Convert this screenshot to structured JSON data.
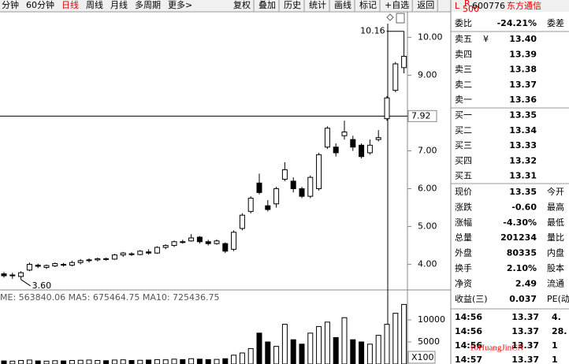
{
  "toolbar": {
    "tabs": [
      "分钟",
      "60分钟",
      "日线",
      "周线",
      "月线",
      "多周期",
      "更多>"
    ],
    "active": 2,
    "buttons": [
      "复权",
      "叠加",
      "历史",
      "统计",
      "画线",
      "标记",
      "+自选",
      "返回"
    ]
  },
  "chart": {
    "type": "candlestick",
    "yticks": [
      {
        "value": 10,
        "label": "10.00"
      },
      {
        "value": 9,
        "label": "9.00"
      },
      {
        "value": 7,
        "label": "7.00"
      },
      {
        "value": 6,
        "label": "6.00"
      },
      {
        "value": 5,
        "label": "5.00"
      },
      {
        "value": 4,
        "label": "4.00"
      }
    ],
    "ylim": [
      3.45,
      10.55
    ],
    "cursor_price": 7.92,
    "high_label": 10.16,
    "low_label": {
      "value": 3.6,
      "label": "3.60"
    },
    "open": [
      3.75,
      3.7,
      3.68,
      3.85,
      3.98,
      3.92,
      3.96,
      4.0,
      3.98,
      4.05,
      4.1,
      4.12,
      4.15,
      4.14,
      4.25,
      4.28,
      4.26,
      4.33,
      4.3,
      4.45,
      4.5,
      4.6,
      4.62,
      4.72,
      4.6,
      4.55,
      4.55,
      4.4,
      4.95,
      5.4,
      6.15,
      5.55,
      5.6,
      6.25,
      6.2,
      6.0,
      5.8,
      6.0,
      7.1,
      7.1,
      7.4,
      7.3,
      7.15,
      6.95,
      7.3,
      7.85,
      8.6,
      9.2
    ],
    "close": [
      3.7,
      3.72,
      3.78,
      4.0,
      3.95,
      3.97,
      4.02,
      3.98,
      4.05,
      4.1,
      4.12,
      4.15,
      4.13,
      4.25,
      4.3,
      4.26,
      4.35,
      4.3,
      4.45,
      4.5,
      4.6,
      4.58,
      4.7,
      4.6,
      4.55,
      4.62,
      4.35,
      4.85,
      5.3,
      5.75,
      5.9,
      5.45,
      6.0,
      6.5,
      6.0,
      5.8,
      6.3,
      6.9,
      7.6,
      6.95,
      7.5,
      7.1,
      6.85,
      7.15,
      7.35,
      8.4,
      9.3,
      9.5
    ],
    "high": [
      3.8,
      3.78,
      3.82,
      4.05,
      4.02,
      4.0,
      4.05,
      4.04,
      4.1,
      4.14,
      4.16,
      4.18,
      4.18,
      4.28,
      4.33,
      4.32,
      4.38,
      4.4,
      4.48,
      4.53,
      4.63,
      4.65,
      4.8,
      4.75,
      4.65,
      4.66,
      4.58,
      4.9,
      5.35,
      5.8,
      6.4,
      5.7,
      6.05,
      6.7,
      6.3,
      6.05,
      6.35,
      6.95,
      7.65,
      7.2,
      7.8,
      7.4,
      7.2,
      7.3,
      7.55,
      8.45,
      9.35,
      10.16
    ],
    "low": [
      3.65,
      3.62,
      3.6,
      3.82,
      3.9,
      3.88,
      3.93,
      3.94,
      3.95,
      4.0,
      4.05,
      4.08,
      4.1,
      4.12,
      4.2,
      4.22,
      4.24,
      4.26,
      4.28,
      4.4,
      4.46,
      4.55,
      4.6,
      4.55,
      4.5,
      4.52,
      4.3,
      4.35,
      4.9,
      5.35,
      5.85,
      5.4,
      5.5,
      6.2,
      5.9,
      5.75,
      5.75,
      5.95,
      7.05,
      6.85,
      7.3,
      7.0,
      6.8,
      6.9,
      7.25,
      7.8,
      8.55,
      9.05
    ],
    "volumes": [
      700,
      650,
      800,
      900,
      700,
      650,
      750,
      700,
      800,
      850,
      900,
      800,
      750,
      900,
      950,
      800,
      850,
      900,
      1000,
      950,
      1100,
      1000,
      1200,
      1100,
      1000,
      1050,
      1200,
      2000,
      2500,
      3500,
      7000,
      5000,
      4000,
      9000,
      5500,
      4500,
      7000,
      8500,
      9500,
      6000,
      10500,
      5500,
      5000,
      4500,
      6500,
      9000,
      11500,
      13500
    ],
    "vticks": [
      10000,
      5000
    ],
    "vlim": [
      0,
      15000
    ],
    "ma_text": "ME: 563840.06  MA5: 675464.75  MA10: 725436.75",
    "scale_button": "X100"
  },
  "quote": {
    "header": {
      "l": "L",
      "r": "R",
      "sub": "500",
      "code": "600776",
      "name": "东方通信"
    },
    "ratio": {
      "label": "委比",
      "value": "-24.21%",
      "extra": "委差"
    },
    "book": [
      {
        "label": "卖五",
        "mark": "¥",
        "value": "13.40"
      },
      {
        "label": "卖四",
        "value": "13.39"
      },
      {
        "label": "卖三",
        "value": "13.38"
      },
      {
        "label": "卖二",
        "value": "13.37"
      },
      {
        "label": "卖一",
        "value": "13.36"
      },
      {
        "label": "买一",
        "value": "13.35"
      },
      {
        "label": "买二",
        "value": "13.34"
      },
      {
        "label": "买三",
        "value": "13.33"
      },
      {
        "label": "买四",
        "value": "13.32"
      },
      {
        "label": "买五",
        "value": "13.31"
      }
    ],
    "stats": [
      {
        "label": "现价",
        "value": "13.35",
        "extra": "今开"
      },
      {
        "label": "涨跌",
        "value": "-0.60",
        "extra": "最高"
      },
      {
        "label": "涨幅",
        "value": "-4.30%",
        "extra": "最低"
      },
      {
        "label": "总量",
        "value": "201234",
        "extra": "量比"
      },
      {
        "label": "外盘",
        "value": "80335",
        "extra": "内盘"
      },
      {
        "label": "换手",
        "value": "2.10%",
        "extra": "股本"
      },
      {
        "label": "净资",
        "value": "2.49",
        "extra": "流通"
      },
      {
        "label": "收益(三)",
        "value": "0.037",
        "extra": "PE(动"
      }
    ],
    "ticks": [
      {
        "time": "14:56",
        "price": "13.37",
        "vol": "4."
      },
      {
        "time": "14:56",
        "price": "13.37",
        "vol": "28."
      },
      {
        "time": "14:56",
        "price": "13.37",
        "vol": "1"
      },
      {
        "time": "14:57",
        "price": "13.37",
        "vol": "1"
      }
    ]
  },
  "watermark": "10HuangJinCN"
}
